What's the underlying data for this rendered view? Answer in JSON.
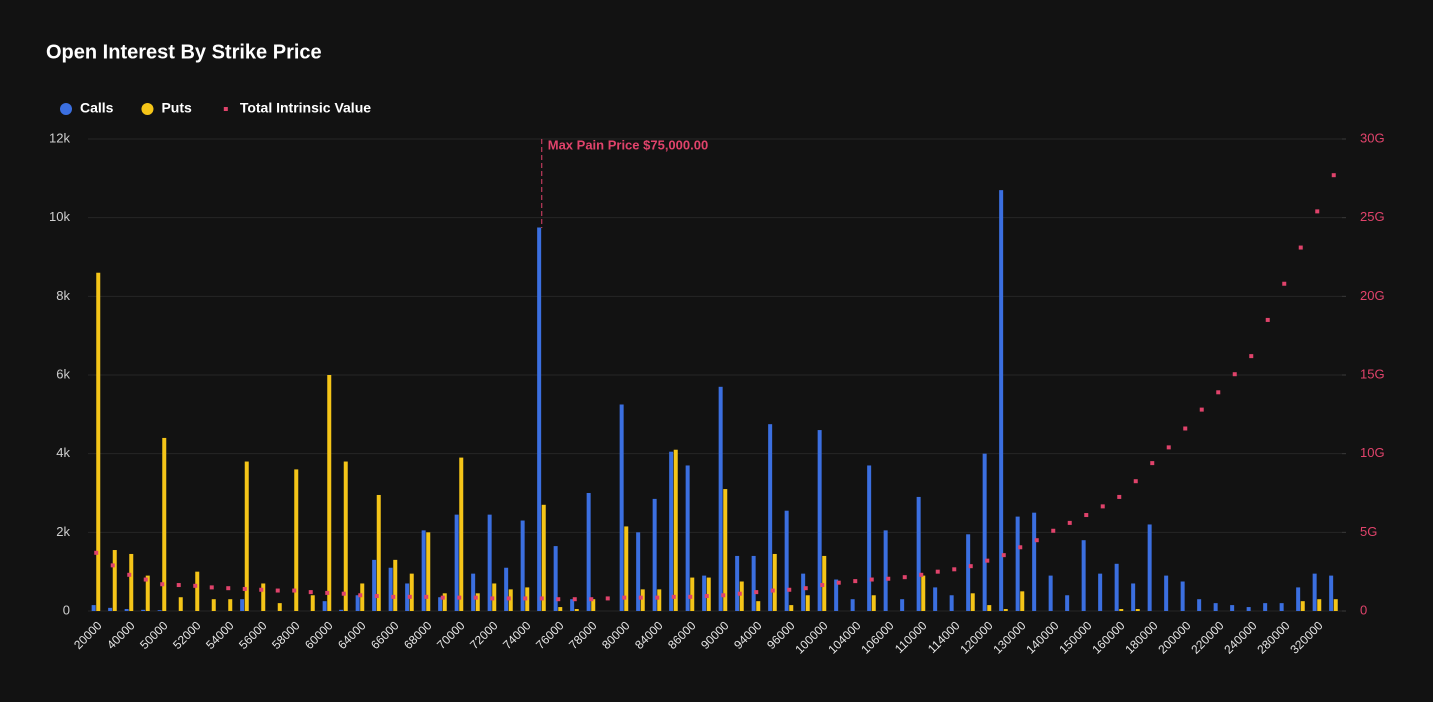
{
  "chart_data": {
    "type": "bar",
    "title": "Open Interest By Strike Price",
    "annotation": "Max Pain Price $75,000.00",
    "categories": [
      "20000",
      null,
      "40000",
      null,
      "50000",
      null,
      "52000",
      null,
      "54000",
      null,
      "56000",
      null,
      "58000",
      null,
      "60000",
      null,
      "64000",
      null,
      "66000",
      null,
      "68000",
      null,
      "70000",
      null,
      "72000",
      null,
      "74000",
      null,
      "76000",
      null,
      "78000",
      null,
      "80000",
      null,
      "84000",
      null,
      "86000",
      null,
      "90000",
      null,
      "94000",
      null,
      "96000",
      null,
      "100000",
      null,
      "104000",
      null,
      "106000",
      null,
      "110000",
      null,
      "114000",
      null,
      "120000",
      null,
      "130000",
      null,
      "140000",
      null,
      "150000",
      null,
      "160000",
      null,
      "180000",
      null,
      "200000",
      null,
      "220000",
      null,
      "240000",
      null,
      "280000",
      null,
      "320000",
      null
    ],
    "series": [
      {
        "name": "Calls",
        "type": "bar",
        "color": "#3b6fe0",
        "values": [
          150,
          80,
          50,
          30,
          20,
          0,
          0,
          0,
          0,
          300,
          0,
          0,
          0,
          0,
          250,
          30,
          400,
          1300,
          1100,
          700,
          2050,
          350,
          2450,
          950,
          2450,
          1100,
          2300,
          9750,
          1650,
          300,
          3000,
          0,
          5250,
          2000,
          2850,
          4050,
          3700,
          900,
          5700,
          1400,
          1400,
          4750,
          2550,
          950,
          4600,
          800,
          300,
          3700,
          2050,
          300,
          2900,
          600,
          400,
          1950,
          4000,
          10700,
          2400,
          2500,
          900,
          400,
          1800,
          950,
          1200,
          700,
          2200,
          900,
          750,
          300,
          200,
          150,
          100,
          200,
          200,
          600,
          950,
          900
        ]
      },
      {
        "name": "Puts",
        "type": "bar",
        "color": "#f5c518",
        "values": [
          8600,
          1550,
          1450,
          900,
          4400,
          350,
          1000,
          300,
          300,
          3800,
          700,
          200,
          3600,
          400,
          6000,
          3800,
          700,
          2950,
          1300,
          950,
          2000,
          450,
          3900,
          450,
          700,
          550,
          600,
          2700,
          100,
          50,
          300,
          0,
          2150,
          550,
          550,
          4100,
          850,
          850,
          3100,
          750,
          250,
          1450,
          150,
          400,
          1400,
          0,
          0,
          400,
          0,
          0,
          900,
          0,
          0,
          450,
          150,
          50,
          500,
          0,
          0,
          0,
          0,
          0,
          50,
          50,
          0,
          0,
          0,
          0,
          0,
          0,
          0,
          0,
          0,
          250,
          300,
          300
        ]
      },
      {
        "name": "Total Intrinsic Value",
        "type": "scatter",
        "axis": "y2",
        "color": "#e0436b",
        "values": [
          3700000000.0,
          2900000000.0,
          2300000000.0,
          2000000000.0,
          1700000000.0,
          1650000000.0,
          1600000000.0,
          1500000000.0,
          1450000000.0,
          1400000000.0,
          1350000000.0,
          1300000000.0,
          1300000000.0,
          1200000000.0,
          1150000000.0,
          1100000000.0,
          1000000000.0,
          950000000.0,
          900000000.0,
          900000000.0,
          900000000.0,
          850000000.0,
          850000000.0,
          850000000.0,
          800000000.0,
          800000000.0,
          800000000.0,
          800000000.0,
          750000000.0,
          750000000.0,
          750000000.0,
          800000000.0,
          850000000.0,
          850000000.0,
          850000000.0,
          900000000.0,
          900000000.0,
          950000000.0,
          1000000000.0,
          1100000000.0,
          1200000000.0,
          1300000000.0,
          1350000000.0,
          1450000000.0,
          1650000000.0,
          1800000000.0,
          1900000000.0,
          2000000000.0,
          2050000000.0,
          2150000000.0,
          2300000000.0,
          2500000000.0,
          2650000000.0,
          2850000000.0,
          3200000000.0,
          3550000000.0,
          4050000000.0,
          4500000000.0,
          5100000000.0,
          5600000000.0,
          6100000000.0,
          6650000000.0,
          7250000000.0,
          8250000000.0,
          9400000000.0,
          10400000000.0,
          11600000000.0,
          12800000000.0,
          13900000000.0,
          15050000000.0,
          16200000000.0,
          18500000000.0,
          20800000000.0,
          23100000000.0,
          25400000000.0,
          27700000000.0
        ]
      }
    ],
    "ylim": [
      0,
      12000
    ],
    "yticks": [
      0,
      {
        "value": 2000,
        "label": "2k"
      },
      {
        "value": 4000,
        "label": "4k"
      },
      {
        "value": 6000,
        "label": "6k"
      },
      {
        "value": 8000,
        "label": "8k"
      },
      {
        "value": 10000,
        "label": "10k"
      },
      {
        "value": 12000,
        "label": "12k"
      }
    ],
    "y2lim": [
      0,
      30000000000
    ],
    "y2ticks": [
      0,
      {
        "value": 5000000000,
        "label": "5G"
      },
      {
        "value": 10000000000,
        "label": "10G"
      },
      {
        "value": 15000000000,
        "label": "15G"
      },
      {
        "value": 20000000000,
        "label": "20G"
      },
      {
        "value": 25000000000,
        "label": "25G"
      },
      {
        "value": 30000000000,
        "label": "30G"
      }
    ],
    "grid": true,
    "legend": "top-left"
  }
}
